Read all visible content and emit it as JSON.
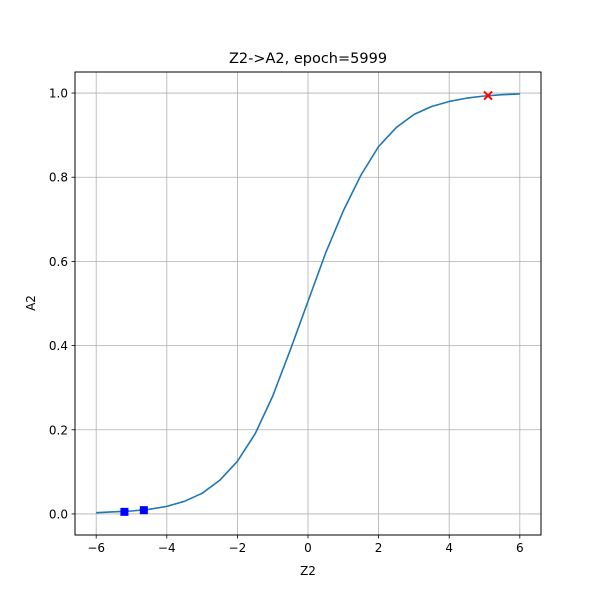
{
  "chart_data": {
    "type": "line",
    "title": "Z2->A2, epoch=5999",
    "xlabel": "Z2",
    "ylabel": "A2",
    "xlim": [
      -6.6,
      6.6
    ],
    "ylim": [
      -0.05,
      1.05
    ],
    "xticks": [
      -6,
      -4,
      -2,
      0,
      2,
      4,
      6
    ],
    "yticks": [
      0.0,
      0.2,
      0.4,
      0.6,
      0.8,
      1.0
    ],
    "xtick_labels": [
      "−6",
      "−4",
      "−2",
      "0",
      "2",
      "4",
      "6"
    ],
    "ytick_labels": [
      "0.0",
      "0.2",
      "0.4",
      "0.6",
      "0.8",
      "1.0"
    ],
    "grid": true,
    "series": [
      {
        "kind": "line",
        "color": "#1f77b4",
        "x": [
          -6,
          -5.5,
          -5,
          -4.5,
          -4,
          -3.5,
          -3,
          -2.5,
          -2,
          -1.5,
          -1,
          -0.5,
          0,
          0.5,
          1,
          1.5,
          2,
          2.5,
          3,
          3.5,
          4,
          4.5,
          5,
          5.5,
          6
        ],
        "y": [
          0.003,
          0.005,
          0.007,
          0.011,
          0.018,
          0.03,
          0.049,
          0.08,
          0.125,
          0.19,
          0.28,
          0.39,
          0.505,
          0.62,
          0.72,
          0.805,
          0.873,
          0.918,
          0.949,
          0.968,
          0.98,
          0.988,
          0.993,
          0.996,
          0.998
        ]
      },
      {
        "kind": "marker",
        "marker": "square",
        "color": "#0000ff",
        "x": [
          -5.2,
          -4.65
        ],
        "y": [
          0.005,
          0.009
        ]
      },
      {
        "kind": "marker",
        "marker": "x",
        "color": "#ff0000",
        "x": [
          5.1
        ],
        "y": [
          0.994
        ]
      }
    ]
  }
}
